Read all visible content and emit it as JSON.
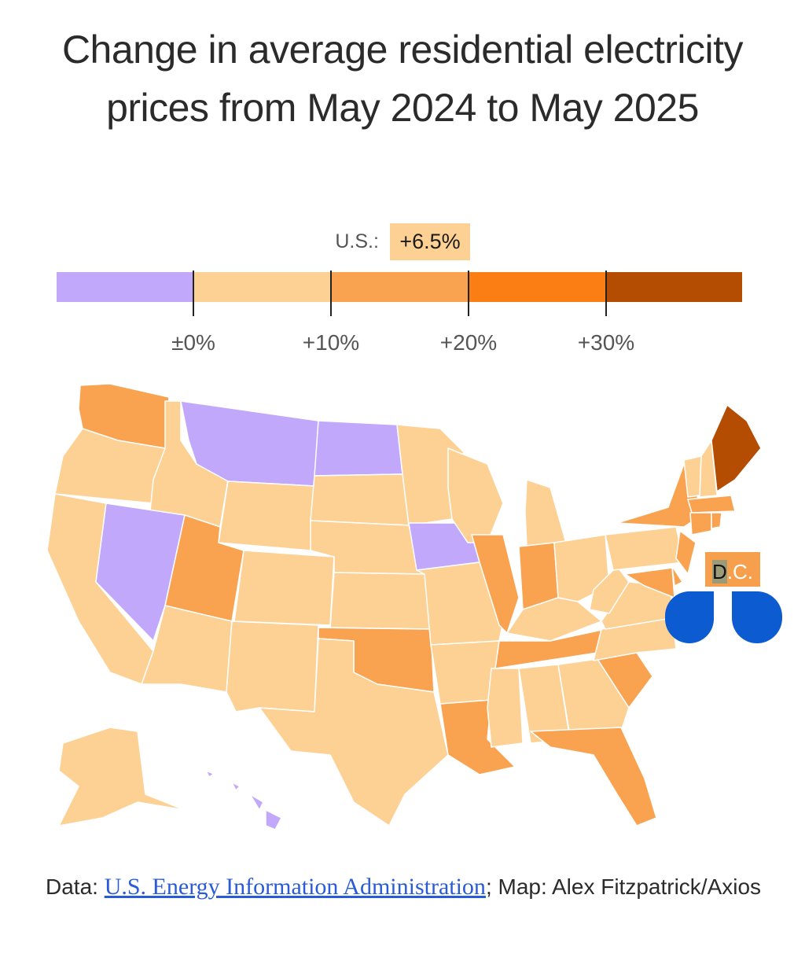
{
  "title": "Change in average residential electricity prices from May 2024 to May 2025",
  "us_summary": {
    "label": "U.S.:",
    "value": "+6.5%"
  },
  "legend": {
    "colors": [
      "#c2a8fb",
      "#fdd094",
      "#f9a24f",
      "#fb7e14",
      "#b44c02"
    ],
    "tick_labels": [
      "±0%",
      "+10%",
      "+20%",
      "+30%"
    ]
  },
  "map_data": {
    "type": "choropleth",
    "category_ranges": [
      "below 0%",
      "0% to 10%",
      "10% to 20%",
      "20% to 30%",
      "30%+"
    ],
    "states": {
      "decrease": [
        "MT",
        "ND",
        "NV",
        "IA",
        "HI"
      ],
      "0_to_10": [
        "OR",
        "ID",
        "WY",
        "SD",
        "NE",
        "KS",
        "CA",
        "AZ",
        "CO",
        "NM",
        "TX",
        "MN",
        "WI",
        "MI",
        "MO",
        "AR",
        "MS",
        "AL",
        "GA",
        "KY",
        "OH",
        "WV",
        "VA",
        "NC",
        "PA",
        "VT",
        "NH",
        "AK"
      ],
      "10_to_20": [
        "WA",
        "UT",
        "IL",
        "IN",
        "OK",
        "LA",
        "TN",
        "SC",
        "FL",
        "NY",
        "CT",
        "NJ",
        "MA",
        "RI",
        "DE",
        "MD",
        "DC"
      ],
      "30_plus": [
        "ME"
      ]
    }
  },
  "dc_label": {
    "d": "D",
    "rest": ".C."
  },
  "source": {
    "prefix": "Data: ",
    "link_text": "U.S. Energy Information Administration",
    "suffix": "; Map: Alex Fitzpatrick/Axios"
  }
}
